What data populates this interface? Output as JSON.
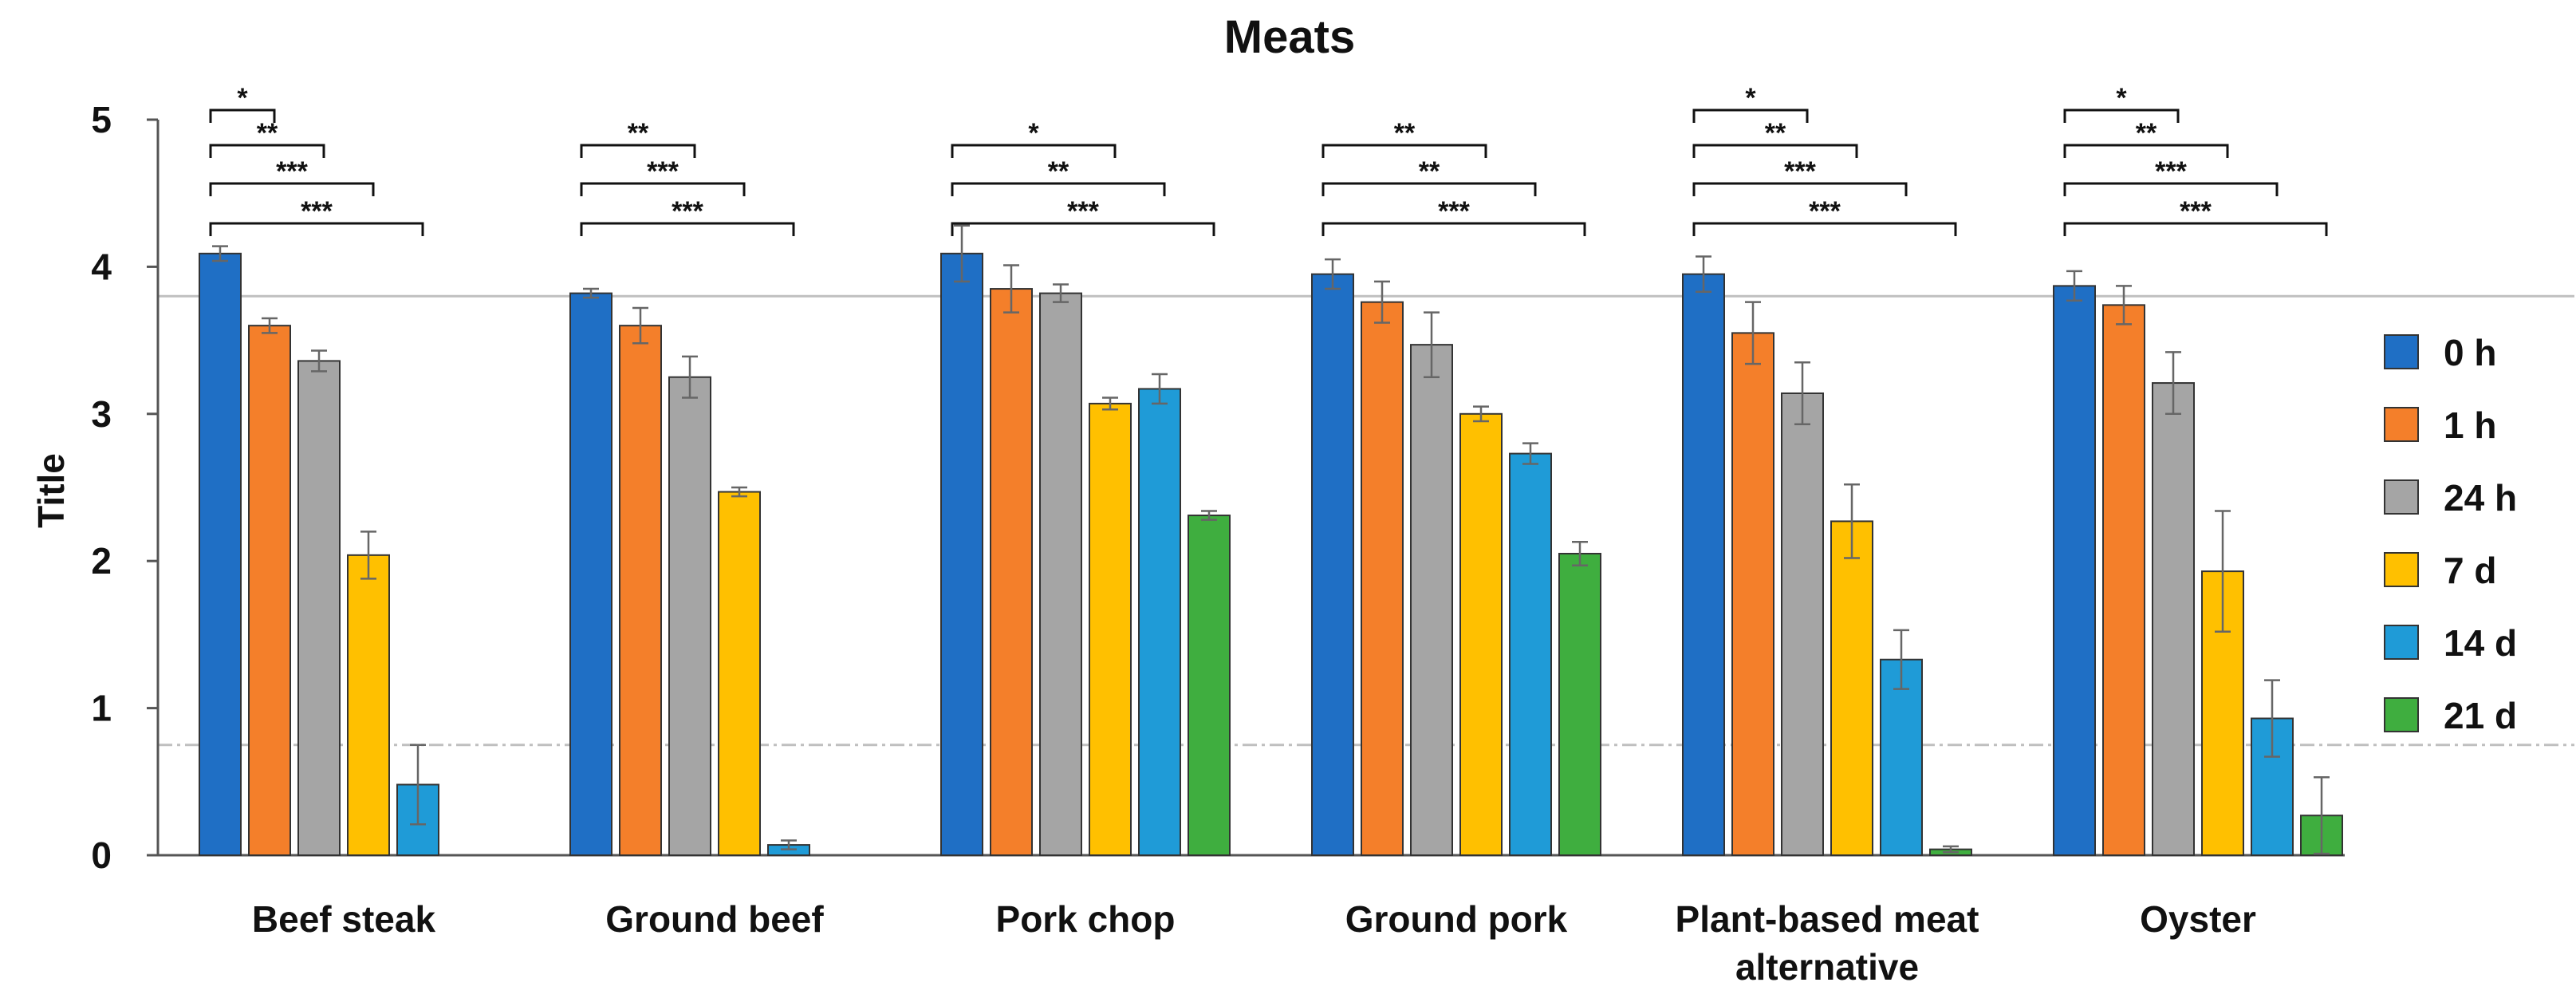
{
  "chart_data": {
    "type": "bar",
    "title": "Meats",
    "xlabel": "",
    "ylabel": "Title",
    "ylim": [
      0,
      5
    ],
    "yticks": [
      "0",
      "1",
      "2",
      "3",
      "4",
      "5"
    ],
    "categories": [
      "Beef steak",
      "Ground beef",
      "Pork chop",
      "Ground pork",
      "Plant-based meat alternative",
      "Oyster"
    ],
    "category_label_lines": [
      [
        "Beef steak"
      ],
      [
        "Ground beef"
      ],
      [
        "Pork chop"
      ],
      [
        "Ground pork"
      ],
      [
        "Plant-based meat",
        "alternative"
      ],
      [
        "Oyster"
      ]
    ],
    "series": [
      {
        "name": "0 h",
        "color": "#1F6FC5",
        "values": [
          4.09,
          3.82,
          4.09,
          3.95,
          3.95,
          3.87
        ],
        "errors": [
          0.05,
          0.03,
          0.19,
          0.1,
          0.12,
          0.1
        ]
      },
      {
        "name": "1 h",
        "color": "#F47F2A",
        "values": [
          3.6,
          3.6,
          3.85,
          3.76,
          3.55,
          3.74
        ],
        "errors": [
          0.05,
          0.12,
          0.16,
          0.14,
          0.21,
          0.13
        ]
      },
      {
        "name": "24 h",
        "color": "#A5A5A5",
        "values": [
          3.36,
          3.25,
          3.82,
          3.47,
          3.14,
          3.21
        ],
        "errors": [
          0.07,
          0.14,
          0.06,
          0.22,
          0.21,
          0.21
        ]
      },
      {
        "name": "7 d",
        "color": "#FFC000",
        "values": [
          2.04,
          2.47,
          3.07,
          3.0,
          2.27,
          1.93
        ],
        "errors": [
          0.16,
          0.03,
          0.04,
          0.05,
          0.25,
          0.41
        ]
      },
      {
        "name": "14 d",
        "color": "#1F9BD7",
        "values": [
          0.48,
          0.07,
          3.17,
          2.73,
          1.33,
          0.93
        ],
        "errors": [
          0.27,
          0.03,
          0.1,
          0.07,
          0.2,
          0.26
        ]
      },
      {
        "name": "21 d",
        "color": "#3FAE3F",
        "values": [
          null,
          null,
          2.31,
          2.05,
          0.04,
          0.27
        ],
        "errors": [
          0,
          0,
          0.03,
          0.08,
          0.02,
          0.26
        ]
      }
    ],
    "reference_lines": [
      {
        "y": 3.8,
        "style": "solid",
        "color": "#BFBFBF"
      },
      {
        "y": 0.75,
        "style": "dash-dot",
        "color": "#BFBFBF"
      }
    ],
    "significance": [
      [
        {
          "to": 1,
          "label": "*"
        },
        {
          "to": 2,
          "label": "**"
        },
        {
          "to": 3,
          "label": "***"
        },
        {
          "to": 4,
          "label": "***"
        }
      ],
      [
        {
          "to": 2,
          "label": "**"
        },
        {
          "to": 3,
          "label": "***"
        },
        {
          "to": 4,
          "label": "***"
        }
      ],
      [
        {
          "to": 3,
          "label": "*"
        },
        {
          "to": 4,
          "label": "**"
        },
        {
          "to": 5,
          "label": "***"
        }
      ],
      [
        {
          "to": 3,
          "label": "**"
        },
        {
          "to": 4,
          "label": "**"
        },
        {
          "to": 5,
          "label": "***"
        }
      ],
      [
        {
          "to": 2,
          "label": "*"
        },
        {
          "to": 3,
          "label": "**"
        },
        {
          "to": 4,
          "label": "***"
        },
        {
          "to": 5,
          "label": "***"
        }
      ],
      [
        {
          "to": 2,
          "label": "*"
        },
        {
          "to": 3,
          "label": "**"
        },
        {
          "to": 4,
          "label": "***"
        },
        {
          "to": 5,
          "label": "***"
        }
      ]
    ],
    "legend": [
      "0 h",
      "1 h",
      "24 h",
      "7 d",
      "14 d",
      "21 d"
    ],
    "legend_position": "right",
    "grid": false
  }
}
